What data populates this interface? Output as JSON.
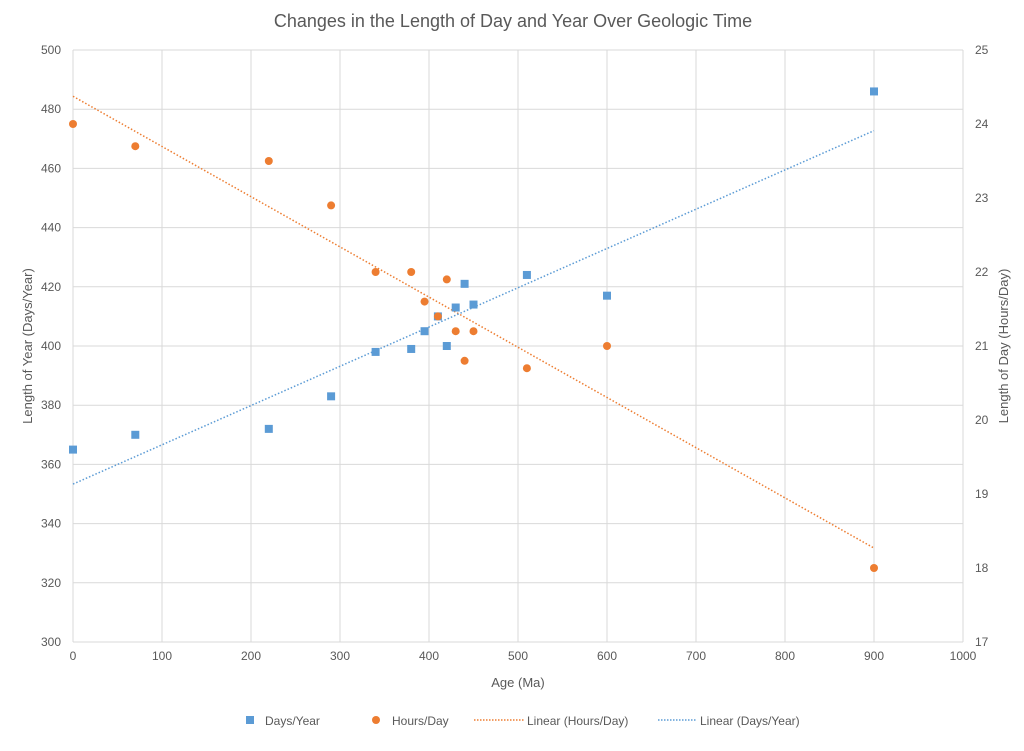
{
  "chart_data": {
    "type": "scatter",
    "title": "Changes in the Length of Day and Year Over Geologic Time",
    "xlabel": "Age (Ma)",
    "ylabel": "Length of Year (Days/Year)",
    "y2label": "Length of Day (Hours/Day)",
    "xlim": [
      0,
      1000
    ],
    "ylim": [
      300,
      500
    ],
    "y2lim": [
      17,
      25
    ],
    "xticks": [
      0,
      100,
      200,
      300,
      400,
      500,
      600,
      700,
      800,
      900,
      1000
    ],
    "yticks": [
      300,
      320,
      340,
      360,
      380,
      400,
      420,
      440,
      460,
      480,
      500
    ],
    "y2ticks": [
      17,
      18,
      19,
      20,
      21,
      22,
      23,
      24,
      25
    ],
    "grid": true,
    "legend_position": "bottom",
    "series": [
      {
        "name": "Days/Year",
        "axis": "left",
        "marker": "square",
        "color": "#5B9BD5",
        "x": [
          0,
          70,
          220,
          290,
          340,
          380,
          395,
          410,
          420,
          430,
          440,
          450,
          510,
          600,
          900
        ],
        "y": [
          365,
          370,
          372,
          383,
          398,
          399,
          405,
          410,
          400,
          413,
          421,
          414,
          424,
          417,
          486
        ]
      },
      {
        "name": "Hours/Day",
        "axis": "right",
        "marker": "circle",
        "color": "#ED7D31",
        "x": [
          0,
          70,
          220,
          290,
          340,
          380,
          395,
          410,
          420,
          430,
          440,
          450,
          510,
          600,
          900
        ],
        "y": [
          24.0,
          23.7,
          23.5,
          22.9,
          22.0,
          22.0,
          21.6,
          21.4,
          21.9,
          21.2,
          20.8,
          21.2,
          20.7,
          21.0,
          18.0
        ]
      }
    ],
    "trendlines": [
      {
        "name": "Linear (Hours/Day)",
        "of": 1,
        "color": "#ED7D31",
        "style": "dotted"
      },
      {
        "name": "Linear (Days/Year)",
        "of": 0,
        "color": "#5B9BD5",
        "style": "dotted"
      }
    ]
  }
}
